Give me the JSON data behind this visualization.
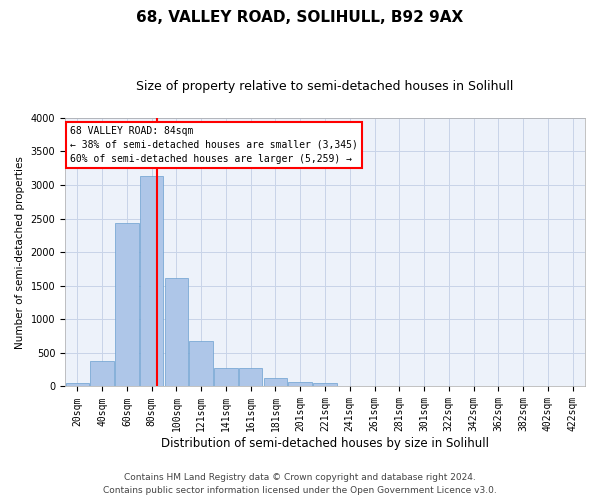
{
  "title": "68, VALLEY ROAD, SOLIHULL, B92 9AX",
  "subtitle": "Size of property relative to semi-detached houses in Solihull",
  "xlabel": "Distribution of semi-detached houses by size in Solihull",
  "ylabel": "Number of semi-detached properties",
  "footer_line1": "Contains HM Land Registry data © Crown copyright and database right 2024.",
  "footer_line2": "Contains public sector information licensed under the Open Government Licence v3.0.",
  "bins": [
    "20sqm",
    "40sqm",
    "60sqm",
    "80sqm",
    "100sqm",
    "121sqm",
    "141sqm",
    "161sqm",
    "181sqm",
    "201sqm",
    "221sqm",
    "241sqm",
    "261sqm",
    "281sqm",
    "301sqm",
    "322sqm",
    "342sqm",
    "362sqm",
    "382sqm",
    "402sqm",
    "422sqm"
  ],
  "values": [
    50,
    380,
    2430,
    3130,
    1620,
    680,
    270,
    270,
    120,
    70,
    55,
    5,
    0,
    0,
    0,
    0,
    0,
    0,
    0,
    0,
    0
  ],
  "bar_color": "#aec6e8",
  "bar_edge_color": "#6aa0d0",
  "grid_color": "#c8d4e8",
  "background_color": "#edf2fa",
  "vline_color": "red",
  "ann_line1": "68 VALLEY ROAD: 84sqm",
  "ann_line2": "← 38% of semi-detached houses are smaller (3,345)",
  "ann_line3": "60% of semi-detached houses are larger (5,259) →",
  "annotation_box_color": "red",
  "ylim": [
    0,
    4000
  ],
  "yticks": [
    0,
    500,
    1000,
    1500,
    2000,
    2500,
    3000,
    3500,
    4000
  ],
  "title_fontsize": 11,
  "subtitle_fontsize": 9,
  "xlabel_fontsize": 8.5,
  "ylabel_fontsize": 7.5,
  "tick_fontsize": 7,
  "footer_fontsize": 6.5
}
